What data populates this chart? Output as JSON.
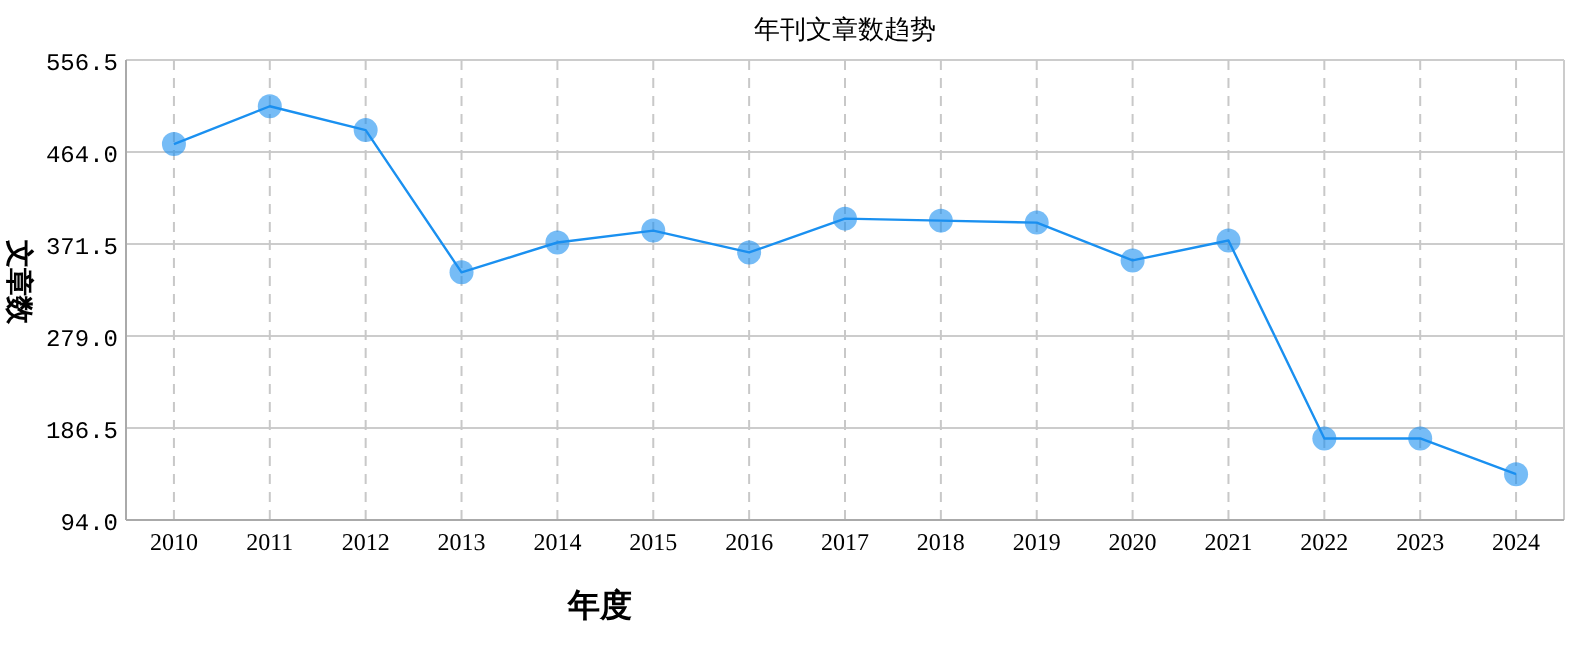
{
  "chart_data": {
    "type": "line",
    "title": "年刊文章数趋势",
    "xlabel": "年度",
    "ylabel": "文章数",
    "categories": [
      "2010",
      "2011",
      "2012",
      "2013",
      "2014",
      "2015",
      "2016",
      "2017",
      "2018",
      "2019",
      "2020",
      "2021",
      "2022",
      "2023",
      "2024"
    ],
    "series": [
      {
        "color": "#1a90f0",
        "values": [
          472,
          510,
          486,
          343,
          373,
          385,
          363,
          397,
          395,
          393,
          355,
          375,
          176,
          176,
          140
        ]
      }
    ],
    "ylim": [
      94.0,
      556.5
    ],
    "yticks": [
      {
        "value": 94.0,
        "label": "94.0"
      },
      {
        "value": 186.5,
        "label": "186.5"
      },
      {
        "value": 279.0,
        "label": "279.0"
      },
      {
        "value": 371.5,
        "label": "371.5"
      },
      {
        "value": 464.0,
        "label": "464.0"
      },
      {
        "value": 556.5,
        "label": "556.5"
      }
    ],
    "grid": true,
    "marker": "circle"
  }
}
